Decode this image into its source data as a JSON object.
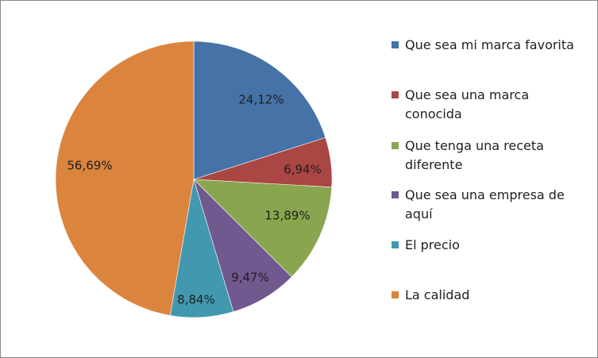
{
  "chart_data": {
    "type": "pie",
    "title": "",
    "start_angle_deg": 0,
    "direction": "clockwise",
    "legend_position": "right",
    "slices": [
      {
        "name": "Que sea mi marca favorita",
        "value": 24.12,
        "label": "24,12%",
        "color": "#4572a7"
      },
      {
        "name": "Que sea una marca conocida",
        "value": 6.94,
        "label": "6,94%",
        "color": "#aa4643"
      },
      {
        "name": "Que tenga una receta diferente",
        "value": 13.89,
        "label": "13,89%",
        "color": "#89a54e"
      },
      {
        "name": "Que sea una empresa de aquí",
        "value": 9.47,
        "label": "9,47%",
        "color": "#71588f"
      },
      {
        "name": "El precio",
        "value": 8.84,
        "label": "8,84%",
        "color": "#4198af"
      },
      {
        "name": "La calidad",
        "value": 56.69,
        "label": "56,69%",
        "color": "#db843d"
      }
    ]
  },
  "legend": {
    "items": [
      {
        "text": "Que sea mi marca favorita",
        "color": "#4572a7"
      },
      {
        "text": "Que sea una marca\nconocida",
        "color": "#aa4643"
      },
      {
        "text": "Que tenga una receta\ndiferente",
        "color": "#89a54e"
      },
      {
        "text": "Que sea una empresa de\naquí",
        "color": "#71588f"
      },
      {
        "text": "El precio",
        "color": "#4198af"
      },
      {
        "text": "La calidad",
        "color": "#db843d"
      }
    ]
  }
}
